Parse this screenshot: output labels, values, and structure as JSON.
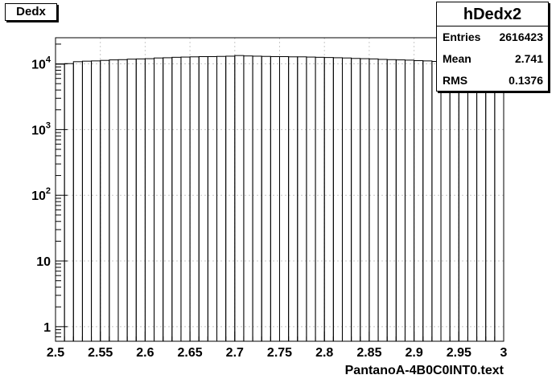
{
  "chart_data": {
    "type": "bar",
    "title": "Dedx",
    "xlabel": "PantanoA-4B0C0INT0.text",
    "ylabel": "",
    "ylog": true,
    "xlim": [
      2.5,
      3.0
    ],
    "ylim": [
      0.6,
      25000
    ],
    "grid": true,
    "bin_width": 0.01,
    "bin_edges": [
      2.5,
      2.51,
      2.52,
      2.53,
      2.54,
      2.55,
      2.56,
      2.57,
      2.58,
      2.59,
      2.6,
      2.61,
      2.62,
      2.63,
      2.64,
      2.65,
      2.66,
      2.67,
      2.68,
      2.69,
      2.7,
      2.71,
      2.72,
      2.73,
      2.74,
      2.75,
      2.76,
      2.77,
      2.78,
      2.79,
      2.8,
      2.81,
      2.82,
      2.83,
      2.84,
      2.85,
      2.86,
      2.87,
      2.88,
      2.89,
      2.9,
      2.91,
      2.92,
      2.93,
      2.94,
      2.95,
      2.96,
      2.97,
      2.98,
      2.99,
      3.0
    ],
    "bin_contents": [
      9900,
      10100,
      10800,
      11000,
      11100,
      11300,
      11500,
      11600,
      11800,
      11900,
      12000,
      12300,
      12400,
      12600,
      12700,
      12800,
      12900,
      12900,
      13000,
      13100,
      13400,
      13200,
      13100,
      13000,
      12900,
      12900,
      12800,
      12800,
      12700,
      12600,
      12500,
      12400,
      12300,
      12100,
      12000,
      11900,
      11700,
      11600,
      11500,
      11400,
      11200,
      11100,
      10900,
      10800,
      10600,
      10400,
      10200,
      10000,
      9800,
      9500
    ],
    "x_ticks": [
      "2.5",
      "2.55",
      "2.6",
      "2.65",
      "2.7",
      "2.75",
      "2.8",
      "2.85",
      "2.9",
      "2.95",
      "3"
    ],
    "y_ticks": [
      {
        "value": 1,
        "base": "1",
        "exp": ""
      },
      {
        "value": 10,
        "base": "10",
        "exp": ""
      },
      {
        "value": 100,
        "base": "10",
        "exp": "2"
      },
      {
        "value": 1000,
        "base": "10",
        "exp": "3"
      },
      {
        "value": 10000,
        "base": "10",
        "exp": "4"
      }
    ],
    "stats": {
      "name": "hDedx2",
      "entries_label": "Entries",
      "entries": "2616423",
      "mean_label": "Mean",
      "mean": "2.741",
      "rms_label": "RMS",
      "rms": "0.1376"
    }
  }
}
